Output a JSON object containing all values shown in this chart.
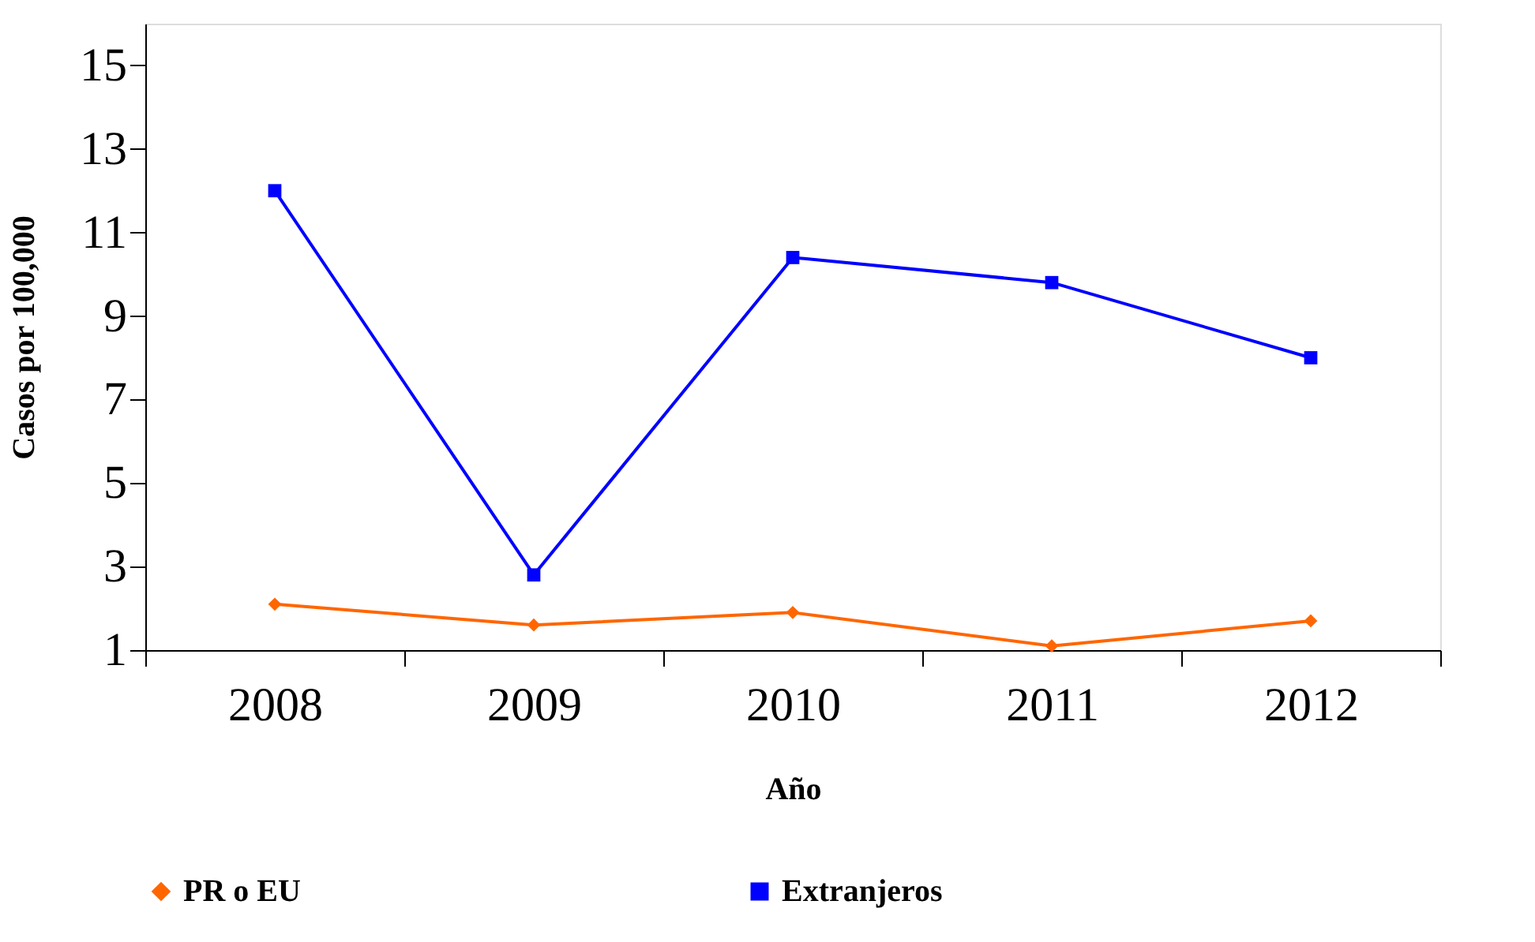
{
  "chart_data": {
    "type": "line",
    "xlabel": "Año",
    "ylabel": "Casos por 100,000",
    "categories": [
      "2008",
      "2009",
      "2010",
      "2011",
      "2012"
    ],
    "series": [
      {
        "name": "PR o EU",
        "color": "#ff6600",
        "marker": "diamond",
        "values": [
          2.1,
          1.6,
          1.9,
          1.1,
          1.7
        ]
      },
      {
        "name": "Extranjeros",
        "color": "#0000ff",
        "marker": "square",
        "values": [
          12.0,
          2.8,
          10.4,
          9.8,
          8.0
        ]
      }
    ],
    "ylim": [
      1,
      16
    ],
    "yticks": [
      1,
      3,
      5,
      7,
      9,
      11,
      13,
      15
    ],
    "grid": false,
    "legend": "bottom",
    "line_style": "solid"
  }
}
